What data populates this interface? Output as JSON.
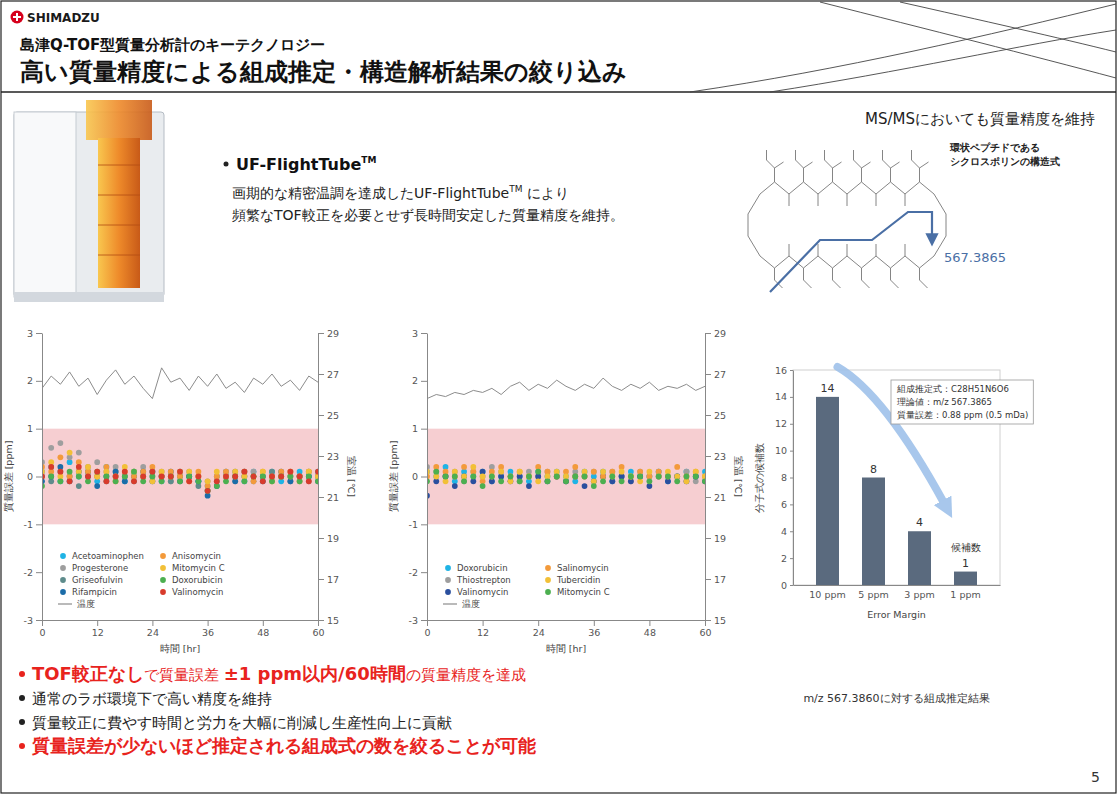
{
  "header": {
    "logo": "SHIMADZU",
    "subtitle": "島津Q-TOF型質量分析計のキーテクノロジー",
    "title": "高い質量精度による組成推定・構造解析結果の絞り込み"
  },
  "feature": {
    "name": "UF-FlightTube",
    "name_mark": "TM",
    "description": [
      [
        {
          "text": "画期的な精密温調を達成したUF-FlightTube"
        },
        {
          "text": "TM",
          "sup": true
        },
        {
          "text": " により"
        }
      ],
      [
        {
          "text": "頻繁なTOF較正を必要とせず長時間安定した質量精度を維持。"
        }
      ]
    ]
  },
  "structure": {
    "heading": "MS/MSにおいても質量精度を維持",
    "caption": [
      "環状ペプチドである",
      "シクロスポリンの構造式"
    ],
    "fragment": "567.3865"
  },
  "chart_data": [
    {
      "type": "scatter",
      "marker": "circle",
      "legend": "lower left",
      "x": [
        0,
        2,
        4,
        6,
        8,
        10,
        12,
        14,
        16,
        18,
        20,
        22,
        24,
        26,
        28,
        30,
        32,
        34,
        36,
        38,
        40,
        42,
        44,
        46,
        48,
        50,
        52,
        54,
        56,
        58,
        60
      ],
      "xlim": [
        0,
        60
      ],
      "xticks": [
        0,
        12,
        24,
        36,
        48,
        60
      ],
      "x_label": "時間 [hr]",
      "ylim": [
        -3,
        3
      ],
      "yticks": [
        -3,
        -2,
        -1,
        0,
        1,
        2,
        3
      ],
      "y_label": "質量誤差 [ppm]",
      "y2lim": [
        15,
        29
      ],
      "y2ticks": [
        15,
        17,
        19,
        21,
        23,
        25,
        27,
        29
      ],
      "y2_label": "室温 [℃]",
      "shaded_range": [
        -1,
        1
      ],
      "series": [
        {
          "name": "Acetoaminophen",
          "color": "#1fb3e5",
          "values": [
            0.1,
            0.2,
            -0.1,
            0.3,
            0,
            0.1,
            -0.1,
            0.2,
            0,
            -0.1,
            0.1,
            0,
            0.1,
            -0.1,
            0,
            0.1,
            0,
            -0.1,
            -0.2,
            0,
            0.1,
            0,
            -0.1,
            0.1,
            0,
            0.1,
            -0.1,
            0,
            0.1,
            0,
            0.1
          ]
        },
        {
          "name": "Progesterone",
          "color": "#9e9e9e",
          "values": [
            0.3,
            0.6,
            0.7,
            0.4,
            0.5,
            0.2,
            0.3,
            0.1,
            0.2,
            0,
            0.1,
            0.2,
            0,
            0.1,
            -0.1,
            0,
            0.1,
            0,
            -0.1,
            0,
            0.1,
            -0.1,
            0,
            0.1,
            0,
            -0.1,
            0,
            0.1,
            0,
            -0.1,
            0
          ]
        },
        {
          "name": "Griseofulvin",
          "color": "#5e8c8c",
          "values": [
            0,
            -0.1,
            0.1,
            0,
            -0.2,
            0.1,
            0,
            -0.1,
            0.1,
            0,
            -0.1,
            0,
            0.1,
            0,
            -0.1,
            0,
            0,
            -0.2,
            -0.3,
            -0.1,
            0,
            0.1,
            0,
            -0.1,
            0,
            0.1,
            0,
            -0.1,
            0,
            0.1,
            0
          ]
        },
        {
          "name": "Rifampicin",
          "color": "#1b6ca8",
          "values": [
            -0.1,
            0,
            0.2,
            -0.1,
            0.1,
            0,
            -0.2,
            0,
            0.1,
            -0.1,
            0,
            0.1,
            -0.1,
            0,
            0.1,
            -0.1,
            0,
            -0.1,
            -0.4,
            -0.2,
            0,
            -0.1,
            0.1,
            0,
            -0.1,
            0,
            0.1,
            -0.1,
            0,
            0,
            -0.1
          ]
        },
        {
          "name": "Anisomycin",
          "color": "#f39a3b",
          "values": [
            0.2,
            0.1,
            0.4,
            0,
            0.3,
            0.1,
            0,
            0.2,
            -0.1,
            0.1,
            0,
            0.1,
            0.2,
            0,
            0.1,
            0,
            -0.1,
            0.1,
            -0.2,
            0,
            0.1,
            0,
            0.1,
            -0.1,
            0.1,
            0,
            0.1,
            0,
            -0.1,
            0.1,
            0
          ]
        },
        {
          "name": "Mitomycin C",
          "color": "#f2c037",
          "values": [
            0.1,
            0.3,
            0,
            0.5,
            0.1,
            0.2,
            0,
            0.1,
            0,
            0.2,
            0.1,
            0,
            -0.1,
            0.1,
            0,
            0.1,
            0.1,
            0,
            -0.1,
            0.1,
            0,
            0.1,
            0,
            0,
            0.1,
            -0.1,
            0,
            0.1,
            0,
            0.1,
            0
          ]
        },
        {
          "name": "Doxorubicin",
          "color": "#4caf50",
          "values": [
            -0.2,
            0,
            -0.1,
            0.1,
            0,
            -0.1,
            0.1,
            0,
            -0.1,
            0,
            0.1,
            -0.1,
            0,
            -0.1,
            0,
            -0.1,
            0,
            -0.1,
            -0.3,
            -0.2,
            -0.1,
            0,
            -0.1,
            0,
            0,
            -0.1,
            0,
            0,
            -0.1,
            0,
            -0.1
          ]
        },
        {
          "name": "Valinomycin",
          "color": "#d83b2c",
          "values": [
            0,
            0.2,
            0.1,
            -0.1,
            0.2,
            0,
            0.1,
            -0.1,
            0,
            0.1,
            -0.1,
            0,
            0.1,
            0,
            0,
            0.1,
            -0.1,
            0,
            -0.3,
            -0.1,
            0,
            0,
            0.1,
            0,
            -0.1,
            0,
            0,
            0.1,
            0,
            -0.1,
            0.1
          ]
        },
        {
          "name": "温度",
          "type": "line",
          "axis": "y2",
          "line_style": "solid",
          "color": "#8c8c8c",
          "values": [
            26.3,
            26.9,
            26.5,
            27.1,
            26.4,
            26.8,
            26.0,
            26.7,
            27.2,
            26.5,
            26.9,
            26.3,
            25.8,
            27.3,
            26.6,
            26.8,
            26.2,
            26.9,
            26.4,
            27.0,
            26.3,
            26.6,
            26.1,
            26.8,
            26.5,
            27.0,
            26.4,
            26.7,
            26.2,
            26.9,
            26.6
          ]
        }
      ]
    },
    {
      "type": "scatter",
      "marker": "circle",
      "legend": "lower left",
      "x": [
        0,
        2,
        4,
        6,
        8,
        10,
        12,
        14,
        16,
        18,
        20,
        22,
        24,
        26,
        28,
        30,
        32,
        34,
        36,
        38,
        40,
        42,
        44,
        46,
        48,
        50,
        52,
        54,
        56,
        58,
        60
      ],
      "xlim": [
        0,
        60
      ],
      "xticks": [
        0,
        12,
        24,
        36,
        48,
        60
      ],
      "x_label": "時間 [hr]",
      "ylim": [
        -3,
        3
      ],
      "yticks": [
        -3,
        -2,
        -1,
        0,
        1,
        2,
        3
      ],
      "y_label": "質量誤差 [ppm]",
      "y2lim": [
        15,
        29
      ],
      "y2ticks": [
        15,
        17,
        19,
        21,
        23,
        25,
        27,
        29
      ],
      "y2_label": "室温 [℃]",
      "shaded_range": [
        -1,
        1
      ],
      "series": [
        {
          "name": "Doxorubicin",
          "color": "#1fb3e5",
          "values": [
            0.1,
            0,
            0.2,
            -0.1,
            0.1,
            0,
            0.1,
            -0.1,
            0,
            0.1,
            0,
            -0.1,
            0.1,
            0,
            0.1,
            0,
            -0.1,
            0.1,
            0,
            0.1,
            -0.1,
            0,
            0.1,
            0,
            0,
            0.1,
            -0.1,
            0,
            0.1,
            0,
            0.1
          ]
        },
        {
          "name": "Thiostrepton",
          "color": "#9e9e9e",
          "values": [
            0.2,
            0.1,
            0,
            0.1,
            -0.1,
            0.1,
            0,
            0.2,
            0.1,
            0,
            -0.1,
            0.1,
            0,
            0.1,
            0,
            -0.1,
            0.1,
            0,
            0.1,
            0,
            0.1,
            0,
            -0.1,
            0.1,
            0,
            0.1,
            0,
            0,
            0.1,
            -0.1,
            0
          ]
        },
        {
          "name": "Valinomycin",
          "color": "#2a4f9e",
          "values": [
            -0.4,
            -0.1,
            0,
            -0.2,
            0,
            -0.1,
            0.1,
            -0.1,
            0,
            -0.1,
            0,
            -0.2,
            0,
            -0.1,
            0,
            -0.1,
            0,
            -0.2,
            -0.1,
            0,
            -0.1,
            0,
            -0.1,
            0,
            -0.2,
            0,
            -0.1,
            0,
            -0.1,
            0,
            -0.1
          ]
        },
        {
          "name": "Salinomycin",
          "color": "#f39a3b",
          "values": [
            0,
            0.2,
            0.1,
            0,
            0.2,
            0.1,
            -0.1,
            0.1,
            0.2,
            0,
            0.1,
            0,
            0.2,
            0.1,
            0,
            0.1,
            0.2,
            0,
            0.1,
            0,
            0.1,
            0.2,
            0,
            0.1,
            0,
            0.1,
            0,
            0.2,
            0,
            0.1,
            0
          ]
        },
        {
          "name": "Tubercidin",
          "color": "#f2c037",
          "values": [
            0.1,
            0,
            -0.1,
            0.1,
            0,
            0.2,
            0,
            0,
            0.1,
            -0.1,
            0.1,
            0,
            -0.1,
            0,
            0.1,
            0,
            0,
            0.1,
            -0.1,
            0.1,
            0,
            0.1,
            0,
            -0.1,
            0.1,
            0,
            0.1,
            0,
            -0.1,
            0.1,
            0
          ]
        },
        {
          "name": "Mitomycin C",
          "color": "#4caf50",
          "values": [
            -0.1,
            0.1,
            0,
            0,
            -0.1,
            0,
            -0.2,
            0,
            -0.1,
            0,
            -0.1,
            0,
            0.1,
            -0.1,
            0,
            -0.1,
            0,
            0,
            -0.2,
            -0.1,
            0,
            -0.1,
            0,
            0,
            -0.1,
            0,
            0,
            -0.1,
            0,
            0,
            -0.1
          ]
        },
        {
          "name": "温度",
          "type": "line",
          "axis": "y2",
          "line_style": "solid",
          "color": "#8c8c8c",
          "values": [
            25.8,
            26.0,
            25.9,
            26.1,
            26.0,
            26.2,
            26.1,
            26.3,
            26.0,
            26.4,
            26.6,
            26.2,
            26.5,
            26.3,
            26.7,
            26.4,
            26.2,
            26.5,
            26.3,
            26.8,
            26.4,
            26.2,
            26.5,
            26.3,
            26.6,
            26.2,
            26.4,
            26.3,
            26.5,
            26.2,
            26.4
          ]
        }
      ]
    },
    {
      "type": "bar",
      "color": "#5a6a7e",
      "data_labels": true,
      "categories": [
        "10 ppm",
        "5 ppm",
        "3 ppm",
        "1 ppm"
      ],
      "values": [
        14,
        8,
        4,
        1
      ],
      "ylim": [
        0,
        16
      ],
      "yticks": [
        0,
        2,
        4,
        6,
        8,
        10,
        12,
        14,
        16
      ],
      "x_label": "Error Margin",
      "y_label": "分子式の候補数",
      "annotation_box": [
        "組成推定式：C28H51N6O6",
        "理論値：m/z 567.3865",
        "質量誤差：0.88 ppm (0.5 mDa)"
      ],
      "annotation": "候補数",
      "caption": "m/z 567.3860に対する組成推定結果"
    }
  ],
  "bullets": [
    {
      "emphasis": true,
      "segments": [
        {
          "text": "TOF較正なし",
          "bold": true
        },
        {
          "text": "で質量誤差 "
        },
        {
          "text": "±1 ppm以内/60時間",
          "bold": true
        },
        {
          "text": "の質量精度を達成"
        }
      ]
    },
    {
      "emphasis": false,
      "segments": [
        {
          "text": "通常のラボ環境下で高い精度を維持"
        }
      ]
    },
    {
      "emphasis": false,
      "segments": [
        {
          "text": "質量較正に費やす時間と労力を大幅に削減し生産性向上に貢献"
        }
      ]
    },
    {
      "emphasis": true,
      "segments": [
        {
          "text": "質量誤差が少ないほど推定される組成式の数を絞ることが可能",
          "bold": true
        }
      ]
    }
  ],
  "page": "5"
}
